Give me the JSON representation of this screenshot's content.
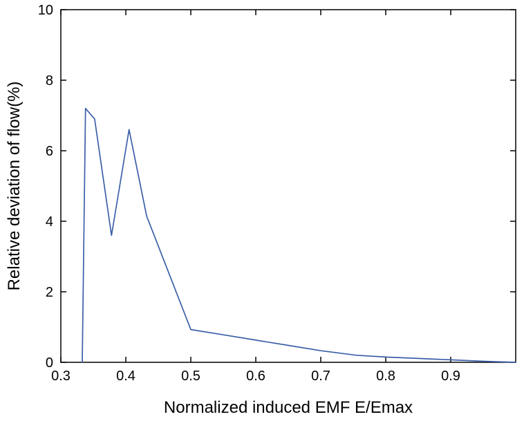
{
  "chart_data": {
    "type": "line",
    "title": "",
    "xlabel": "Normalized induced EMF E/Emax",
    "ylabel": "Relative deviation of flow(%)",
    "xlim": [
      0.3,
      1.0
    ],
    "ylim": [
      0,
      10
    ],
    "xticks": [
      0.3,
      0.4,
      0.5,
      0.6,
      0.7,
      0.8,
      0.9
    ],
    "yticks": [
      0,
      2,
      4,
      6,
      8,
      10
    ],
    "grid": false,
    "legend": "none",
    "line_color": "#3a5fa8",
    "axis_color": "#000000",
    "series": [
      {
        "name": "relative deviation of flow",
        "x": [
          0.333,
          0.338,
          0.352,
          0.378,
          0.405,
          0.432,
          0.5,
          0.55,
          0.6,
          0.65,
          0.7,
          0.755,
          0.8,
          0.85,
          0.9,
          0.95,
          1.0
        ],
        "y": [
          0.0,
          7.2,
          6.9,
          3.6,
          6.6,
          4.15,
          0.93,
          0.78,
          0.63,
          0.48,
          0.33,
          0.2,
          0.15,
          0.11,
          0.07,
          0.03,
          0.0
        ]
      }
    ]
  }
}
